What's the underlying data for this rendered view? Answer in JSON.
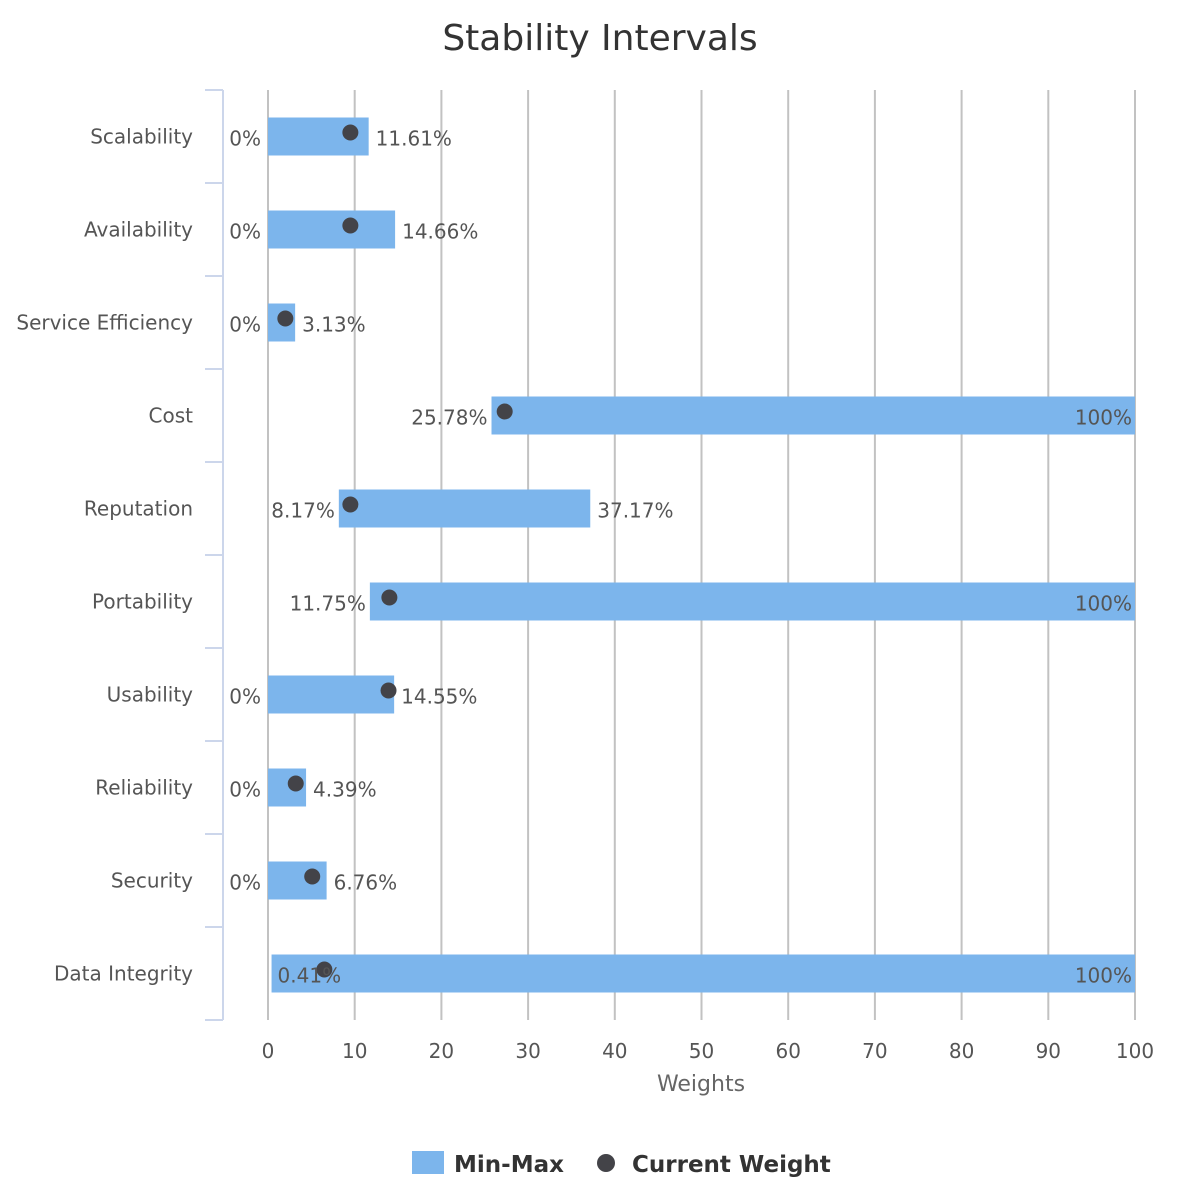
{
  "chart_data": {
    "type": "bar",
    "title": "Stability Intervals",
    "xlabel": "Weights",
    "ylabel": "",
    "xlim": [
      0,
      100
    ],
    "x_ticks": [
      "0",
      "10",
      "20",
      "30",
      "40",
      "50",
      "60",
      "70",
      "80",
      "90",
      "100"
    ],
    "orientation": "horizontal",
    "grid": true,
    "legend_placement": "bottom-center",
    "categories": [
      "Scalability",
      "Availability",
      "Service Efficiency",
      "Cost",
      "Reputation",
      "Portability",
      "Usability",
      "Reliability",
      "Security",
      "Data Integrity"
    ],
    "series": [
      {
        "name": "Min-Max",
        "kind": "range-bar",
        "color": "#7cb5ec",
        "low": [
          0,
          0,
          0,
          25.78,
          8.17,
          11.75,
          0,
          0,
          0,
          0.41
        ],
        "high": [
          11.61,
          14.66,
          3.13,
          100,
          37.17,
          100,
          14.55,
          4.39,
          6.76,
          100
        ],
        "low_labels": [
          "0%",
          "0%",
          "0%",
          "25.78%",
          "8.17%",
          "11.75%",
          "0%",
          "0%",
          "0%",
          "0.41%"
        ],
        "high_labels": [
          "11.61%",
          "14.66%",
          "3.13%",
          "100%",
          "37.17%",
          "100%",
          "14.55%",
          "4.39%",
          "6.76%",
          "100%"
        ]
      },
      {
        "name": "Current Weight",
        "kind": "scatter",
        "color": "#434348",
        "values": [
          9.5,
          9.5,
          2.0,
          27.3,
          9.5,
          14.0,
          13.9,
          3.2,
          5.1,
          6.5
        ]
      }
    ]
  }
}
